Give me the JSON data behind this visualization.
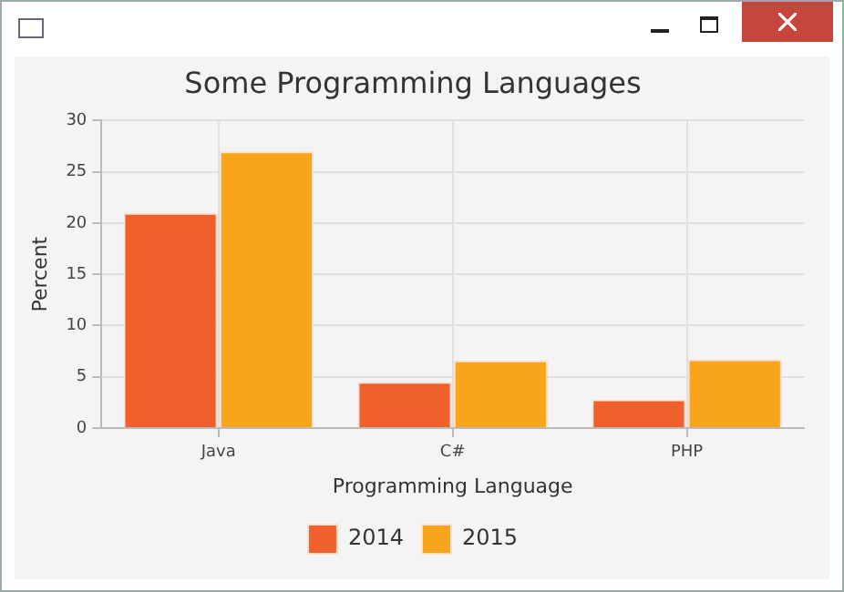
{
  "chart_data": {
    "type": "bar",
    "title": "Some Programming Languages",
    "xlabel": "Programming Language",
    "ylabel": "Percent",
    "categories": [
      "Java",
      "C#",
      "PHP"
    ],
    "series": [
      {
        "name": "2014",
        "color": "#f0602c",
        "values": [
          21.0,
          4.5,
          2.8
        ]
      },
      {
        "name": "2015",
        "color": "#f8a51c",
        "values": [
          27.0,
          6.6,
          6.7
        ]
      }
    ],
    "ylim": [
      0,
      30
    ],
    "yticks": [
      0,
      5,
      10,
      15,
      20,
      25,
      30
    ],
    "grid": true,
    "legend": "bottom"
  }
}
